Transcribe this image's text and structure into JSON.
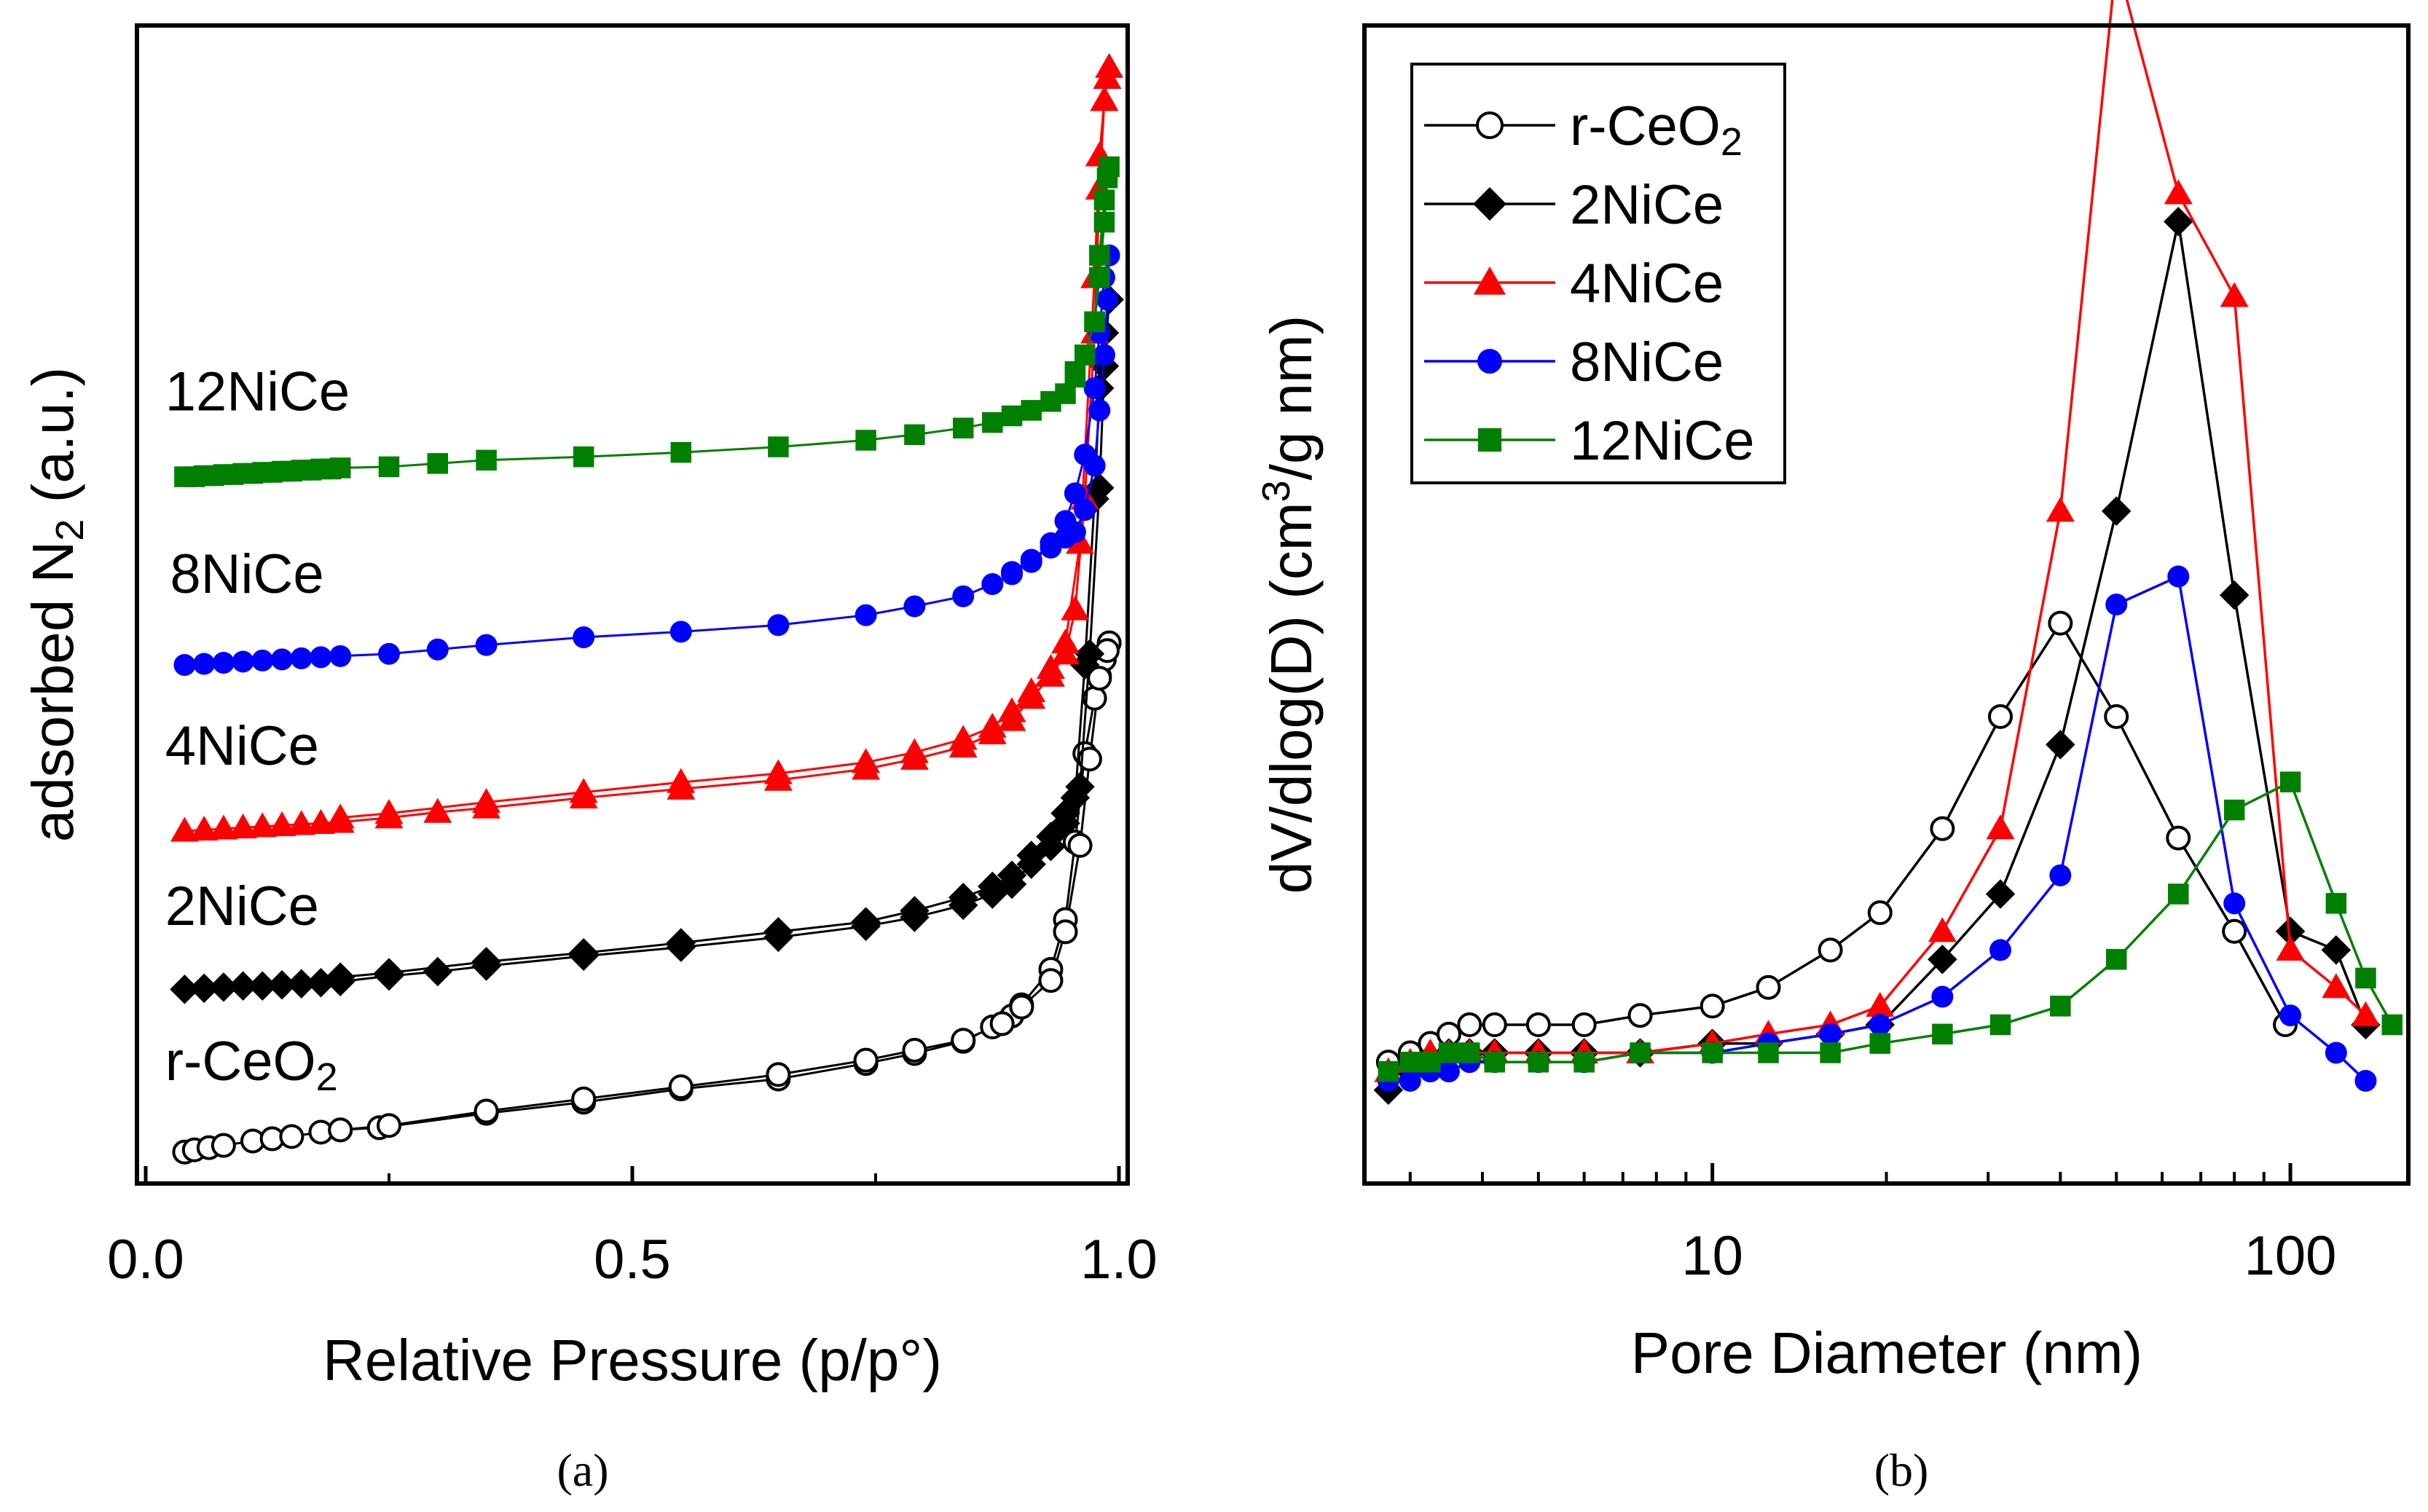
{
  "captions": {
    "a": "(a)",
    "b": "(b)"
  },
  "colors": {
    "r-CeO2": "#000000",
    "2NiCe": "#000000",
    "4NiCe": "#ff0000",
    "8NiCe": "#0000ff",
    "12NiCe": "#008000"
  },
  "chart_data": [
    {
      "id": "a",
      "type": "scatter",
      "title": "",
      "xlabel": "Relative Pressure (p/p°)",
      "ylabel_parts": {
        "pre": "adsorbed N",
        "sub": "2",
        "post": " (a.u.)"
      },
      "xlim": [
        0.0,
        1.0
      ],
      "ylim": [
        0,
        100
      ],
      "xticks": [
        0.0,
        0.5,
        1.0
      ],
      "xtick_labels": [
        "0.0",
        "0.5",
        "1.0"
      ],
      "x_minor_ticks": [
        0.25,
        0.75
      ],
      "y_tick_labels": "none (arbitrary units)",
      "note": "y values are arbitrary units (0-100 scale, curves offset vertically)",
      "series": [
        {
          "name": "r-CeO2",
          "label_parts": {
            "pre": "r-CeO",
            "sub": "2"
          },
          "marker": "open-circle",
          "color": "#000000",
          "label_at": [
            0.02,
            7.5
          ],
          "x": [
            0.04,
            0.05,
            0.065,
            0.08,
            0.11,
            0.13,
            0.15,
            0.18,
            0.2,
            0.24,
            0.35,
            0.45,
            0.55,
            0.65,
            0.74,
            0.79,
            0.84,
            0.87,
            0.89,
            0.9,
            0.93,
            0.945,
            0.955,
            0.965,
            0.975,
            0.98,
            0.985,
            0.99,
            0.988,
            0.98,
            0.97,
            0.96,
            0.945,
            0.93,
            0.9,
            0.88,
            0.84,
            0.79,
            0.74,
            0.65,
            0.55,
            0.45,
            0.35,
            0.25,
            0.2
          ],
          "y": [
            1.0,
            1.2,
            1.4,
            1.6,
            2.0,
            2.2,
            2.4,
            2.8,
            3.0,
            3.2,
            4.5,
            5.5,
            6.7,
            7.6,
            9.0,
            9.9,
            11.0,
            12.3,
            13.3,
            14.3,
            17.5,
            22.0,
            29.0,
            37.0,
            42.0,
            44.0,
            45.5,
            47.0,
            46.3,
            43.8,
            36.5,
            28.7,
            20.9,
            16.5,
            14.1,
            12.6,
            11.1,
            10.2,
            9.3,
            8.0,
            6.9,
            5.8,
            4.7,
            3.4,
            3.0
          ]
        },
        {
          "name": "2NiCe",
          "label_parts": {
            "pre": "2NiCe",
            "sub": ""
          },
          "marker": "filled-diamond",
          "color": "#000000",
          "label_at": [
            0.02,
            21.5
          ],
          "x": [
            0.04,
            0.06,
            0.08,
            0.1,
            0.12,
            0.14,
            0.16,
            0.18,
            0.2,
            0.25,
            0.3,
            0.35,
            0.45,
            0.55,
            0.65,
            0.74,
            0.79,
            0.84,
            0.87,
            0.89,
            0.91,
            0.93,
            0.945,
            0.955,
            0.965,
            0.975,
            0.98,
            0.985,
            0.99,
            0.985,
            0.98,
            0.97,
            0.96,
            0.945,
            0.93,
            0.91,
            0.89,
            0.87,
            0.84,
            0.79,
            0.74,
            0.65,
            0.55,
            0.45,
            0.35,
            0.25,
            0.2
          ],
          "y": [
            15.7,
            15.8,
            15.9,
            16.0,
            16.0,
            16.1,
            16.2,
            16.3,
            16.4,
            16.9,
            17.3,
            17.8,
            18.7,
            19.5,
            20.4,
            21.4,
            22.2,
            23.3,
            24.3,
            25.2,
            27.0,
            28.6,
            30.7,
            33.0,
            45.0,
            60.0,
            70.0,
            75.0,
            78.0,
            72.0,
            61.0,
            46.0,
            34.0,
            31.6,
            29.5,
            27.8,
            26.0,
            25.0,
            24.0,
            22.8,
            21.8,
            20.9,
            19.9,
            19.0,
            18.2,
            17.2,
            16.8
          ]
        },
        {
          "name": "4NiCe",
          "label_parts": {
            "pre": "4NiCe",
            "sub": ""
          },
          "marker": "filled-triangle",
          "color": "#ff0000",
          "label_at": [
            0.02,
            36.0
          ],
          "x": [
            0.04,
            0.06,
            0.08,
            0.1,
            0.12,
            0.14,
            0.16,
            0.18,
            0.2,
            0.25,
            0.3,
            0.35,
            0.45,
            0.55,
            0.65,
            0.74,
            0.79,
            0.84,
            0.87,
            0.89,
            0.91,
            0.93,
            0.945,
            0.955,
            0.965,
            0.975,
            0.98,
            0.985,
            0.99,
            0.988,
            0.985,
            0.98,
            0.975,
            0.96,
            0.945,
            0.93,
            0.91,
            0.89,
            0.87,
            0.84,
            0.79,
            0.74,
            0.65,
            0.55,
            0.45,
            0.35,
            0.25,
            0.2
          ],
          "y": [
            30.0,
            30.1,
            30.2,
            30.3,
            30.4,
            30.5,
            30.6,
            30.7,
            30.8,
            31.2,
            31.7,
            32.1,
            33.0,
            33.8,
            34.6,
            35.6,
            36.5,
            37.6,
            38.8,
            40.0,
            42.0,
            44.0,
            46.0,
            50.0,
            60.0,
            75.0,
            88.0,
            96.0,
            99.0,
            98.0,
            96.0,
            91.0,
            80.0,
            56.0,
            47.0,
            44.7,
            42.6,
            40.8,
            39.4,
            38.3,
            37.1,
            36.2,
            35.2,
            34.4,
            33.5,
            32.6,
            31.6,
            31.2
          ]
        },
        {
          "name": "8NiCe",
          "label_parts": {
            "pre": "8NiCe",
            "sub": ""
          },
          "marker": "filled-circle",
          "color": "#0000ff",
          "label_at": [
            0.025,
            51.5
          ],
          "x": [
            0.04,
            0.06,
            0.08,
            0.1,
            0.12,
            0.14,
            0.16,
            0.18,
            0.2,
            0.25,
            0.3,
            0.35,
            0.45,
            0.55,
            0.65,
            0.74,
            0.79,
            0.84,
            0.87,
            0.89,
            0.91,
            0.93,
            0.945,
            0.955,
            0.965,
            0.975,
            0.98,
            0.985,
            0.99,
            0.988,
            0.985,
            0.98,
            0.975,
            0.965,
            0.955,
            0.945,
            0.93,
            0.91,
            0.89
          ],
          "y": [
            45.0,
            45.1,
            45.2,
            45.3,
            45.4,
            45.5,
            45.6,
            45.7,
            45.8,
            46.0,
            46.4,
            46.8,
            47.5,
            48.0,
            48.6,
            49.5,
            50.3,
            51.2,
            52.3,
            53.2,
            54.3,
            56.0,
            58.0,
            60.5,
            64.0,
            70.0,
            75.0,
            80.0,
            82.0,
            78.0,
            73.0,
            68.0,
            63.0,
            59.0,
            57.0,
            56.5,
            55.6,
            54.5,
            53.4
          ]
        },
        {
          "name": "12NiCe",
          "label_parts": {
            "pre": "12NiCe",
            "sub": ""
          },
          "marker": "filled-square",
          "color": "#008000",
          "label_at": [
            0.02,
            68.0
          ],
          "x": [
            0.04,
            0.05,
            0.06,
            0.07,
            0.08,
            0.09,
            0.1,
            0.11,
            0.12,
            0.13,
            0.14,
            0.15,
            0.16,
            0.17,
            0.18,
            0.19,
            0.2,
            0.25,
            0.3,
            0.35,
            0.45,
            0.55,
            0.65,
            0.74,
            0.79,
            0.84,
            0.87,
            0.89,
            0.91,
            0.93,
            0.945,
            0.955,
            0.965,
            0.975,
            0.98,
            0.985,
            0.99,
            0.988,
            0.985,
            0.98,
            0.975,
            0.965,
            0.955
          ],
          "y": [
            62.0,
            62.0,
            62.1,
            62.1,
            62.2,
            62.2,
            62.3,
            62.3,
            62.4,
            62.4,
            62.5,
            62.5,
            62.6,
            62.6,
            62.7,
            62.7,
            62.8,
            62.9,
            63.2,
            63.5,
            63.8,
            64.2,
            64.7,
            65.3,
            65.8,
            66.4,
            66.9,
            67.5,
            68.0,
            68.8,
            69.5,
            71.0,
            73.0,
            76.0,
            82.0,
            87.0,
            90.0,
            89.0,
            85.0,
            80.0,
            76.0,
            73.0,
            71.5
          ]
        }
      ]
    },
    {
      "id": "b",
      "type": "line",
      "title": "",
      "xlabel": "Pore Diameter (nm)",
      "ylabel_parts": {
        "pre": "dV/dlog(D) (cm",
        "sup": "3",
        "post": "/g nm)"
      },
      "xscale": "log",
      "xlim": [
        2.5,
        160
      ],
      "ylim": [
        -0.12,
        1.12
      ],
      "xticks": [
        10,
        100
      ],
      "xtick_labels": [
        "10",
        "100"
      ],
      "x_minor_ticks": [
        3,
        4,
        5,
        6,
        7,
        8,
        9,
        20,
        30,
        40,
        50,
        60,
        70,
        80,
        90
      ],
      "y_tick_labels": "none",
      "legend_position": "top-left",
      "note": "y values in arbitrary units (no tick labels shown)",
      "series": [
        {
          "name": "r-CeO2",
          "label_parts": {
            "pre": "r-CeO",
            "sub": "2"
          },
          "marker": "open-circle",
          "color": "#000000",
          "x": [
            2.75,
            3.0,
            3.25,
            3.5,
            3.8,
            4.2,
            5.0,
            6.0,
            7.5,
            10.0,
            12.5,
            16.0,
            19.5,
            25.0,
            31.5,
            40.0,
            50.0,
            64.0,
            80.0,
            98.0
          ],
          "y": [
            0.01,
            0.02,
            0.03,
            0.04,
            0.05,
            0.05,
            0.05,
            0.05,
            0.06,
            0.07,
            0.09,
            0.13,
            0.17,
            0.26,
            0.38,
            0.48,
            0.38,
            0.25,
            0.15,
            0.05
          ]
        },
        {
          "name": "2NiCe",
          "label_parts": {
            "pre": "2NiCe",
            "sub": ""
          },
          "marker": "filled-diamond",
          "color": "#000000",
          "x": [
            2.75,
            3.0,
            3.25,
            3.5,
            3.8,
            4.2,
            5.0,
            6.0,
            7.5,
            10.0,
            12.5,
            16.0,
            19.5,
            25.0,
            31.5,
            40.0,
            50.0,
            64.0,
            80.0,
            100.0,
            120.0,
            135.0
          ],
          "y": [
            -0.02,
            0.0,
            0.01,
            0.02,
            0.02,
            0.02,
            0.02,
            0.02,
            0.02,
            0.03,
            0.03,
            0.04,
            0.05,
            0.12,
            0.19,
            0.35,
            0.6,
            0.91,
            0.51,
            0.15,
            0.13,
            0.05
          ]
        },
        {
          "name": "4NiCe",
          "label_parts": {
            "pre": "4NiCe",
            "sub": ""
          },
          "marker": "filled-triangle",
          "color": "#ff0000",
          "x": [
            2.75,
            3.0,
            3.25,
            3.5,
            3.8,
            4.2,
            5.0,
            6.0,
            7.5,
            10.0,
            12.5,
            16.0,
            19.5,
            25.0,
            31.5,
            40.0,
            50.0,
            64.0,
            80.0,
            100.0,
            120.0,
            135.0
          ],
          "y": [
            0.0,
            0.01,
            0.02,
            0.02,
            0.02,
            0.02,
            0.02,
            0.02,
            0.02,
            0.03,
            0.04,
            0.05,
            0.07,
            0.15,
            0.26,
            0.6,
            1.19,
            0.94,
            0.83,
            0.13,
            0.09,
            0.06
          ]
        },
        {
          "name": "8NiCe",
          "label_parts": {
            "pre": "8NiCe",
            "sub": ""
          },
          "marker": "filled-circle",
          "color": "#0000ff",
          "x": [
            2.75,
            3.0,
            3.25,
            3.5,
            3.8,
            4.2,
            5.0,
            6.0,
            7.5,
            10.0,
            12.5,
            16.0,
            19.5,
            25.0,
            31.5,
            40.0,
            50.0,
            64.0,
            80.0,
            100.0,
            120.0,
            135.0
          ],
          "y": [
            -0.01,
            -0.01,
            0.0,
            0.0,
            0.01,
            0.01,
            0.01,
            0.01,
            0.02,
            0.02,
            0.03,
            0.04,
            0.05,
            0.08,
            0.13,
            0.21,
            0.5,
            0.53,
            0.18,
            0.06,
            0.02,
            -0.01
          ]
        },
        {
          "name": "12NiCe",
          "label_parts": {
            "pre": "12NiCe",
            "sub": ""
          },
          "marker": "filled-square",
          "color": "#008000",
          "x": [
            2.75,
            3.0,
            3.25,
            3.5,
            3.8,
            4.2,
            5.0,
            6.0,
            7.5,
            10.0,
            12.5,
            16.0,
            19.5,
            25.0,
            31.5,
            40.0,
            50.0,
            64.0,
            80.0,
            100.0,
            120.0,
            135.0,
            150.0
          ],
          "y": [
            0.0,
            0.01,
            0.01,
            0.02,
            0.02,
            0.01,
            0.01,
            0.01,
            0.02,
            0.02,
            0.02,
            0.02,
            0.03,
            0.04,
            0.05,
            0.07,
            0.12,
            0.19,
            0.28,
            0.31,
            0.18,
            0.1,
            0.05
          ]
        }
      ]
    }
  ]
}
